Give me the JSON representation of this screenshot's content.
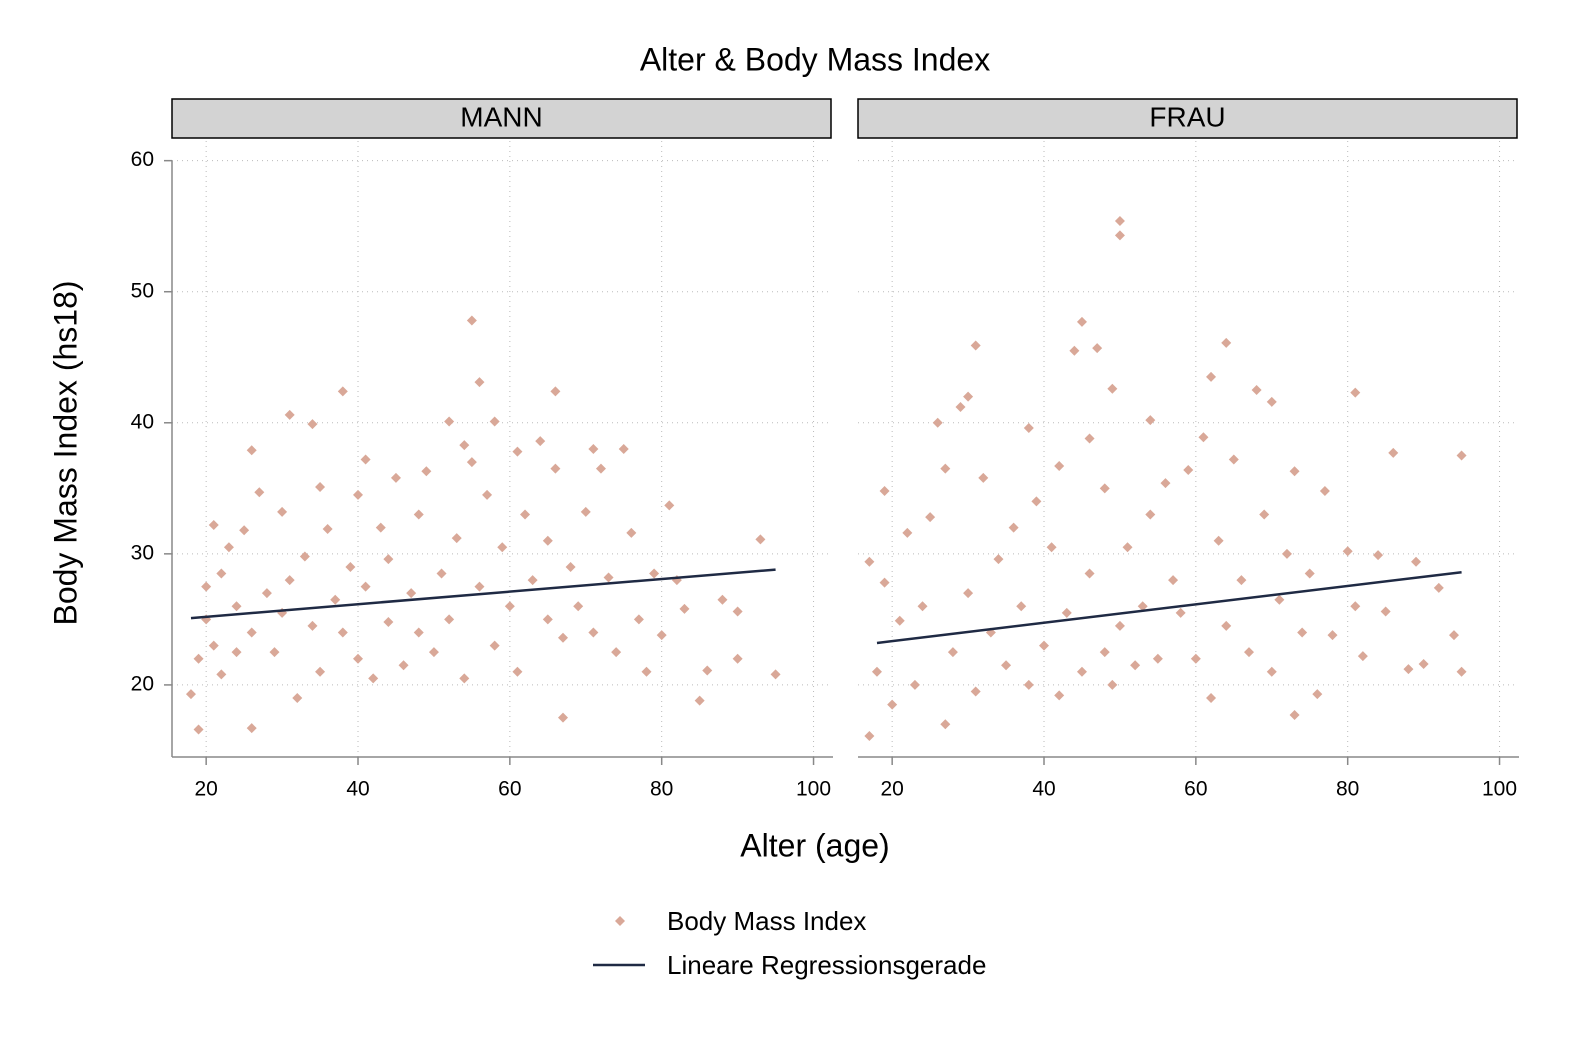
{
  "chart_data": {
    "type": "scatter",
    "title": "Alter & Body Mass Index",
    "x_label": "Alter (age)",
    "y_label": "Body Mass Index (hs18)",
    "xlim": [
      15.5,
      102.3
    ],
    "ylim": [
      14.5,
      61.5
    ],
    "xticks": [
      20,
      40,
      60,
      80,
      100
    ],
    "yticks": [
      20,
      30,
      40,
      50,
      60
    ],
    "grid": true,
    "legend": "bottom",
    "series": [
      {
        "name": "Body Mass Index",
        "color": "#d9a898",
        "marker": "diamond"
      },
      {
        "name": "Lineare Regressionsgerade",
        "color": "#1f2a44"
      }
    ],
    "panels": [
      {
        "title": "MANN",
        "points": {
          "x": [
            18,
            19,
            19,
            20,
            20,
            21,
            21,
            22,
            22,
            23,
            24,
            24,
            25,
            26,
            26,
            26,
            27,
            28,
            29,
            30,
            30,
            31,
            31,
            32,
            33,
            34,
            34,
            35,
            35,
            36,
            37,
            38,
            38,
            39,
            40,
            40,
            41,
            41,
            42,
            43,
            44,
            44,
            45,
            46,
            47,
            48,
            48,
            49,
            50,
            51,
            52,
            52,
            53,
            54,
            54,
            55,
            55,
            56,
            56,
            57,
            58,
            58,
            59,
            60,
            61,
            61,
            62,
            63,
            64,
            65,
            65,
            66,
            66,
            67,
            67,
            68,
            69,
            70,
            71,
            71,
            72,
            73,
            74,
            75,
            76,
            77,
            78,
            79,
            80,
            81,
            82,
            83,
            85,
            86,
            88,
            90,
            90,
            93,
            95
          ],
          "values": [
            19.3,
            16.6,
            22,
            27.5,
            25,
            32.2,
            23,
            28.5,
            20.8,
            30.5,
            26,
            22.5,
            31.8,
            37.9,
            16.7,
            24,
            34.7,
            27,
            22.5,
            33.2,
            25.5,
            40.6,
            28,
            19,
            29.8,
            39.9,
            24.5,
            35.1,
            21,
            31.9,
            26.5,
            42.4,
            24,
            29,
            22,
            34.5,
            37.2,
            27.5,
            20.5,
            32,
            24.8,
            29.6,
            35.8,
            21.5,
            27,
            33,
            24,
            36.3,
            22.5,
            28.5,
            40.1,
            25,
            31.2,
            38.3,
            20.5,
            47.8,
            37,
            43.1,
            27.5,
            34.5,
            40.1,
            23,
            30.5,
            26,
            37.8,
            21,
            33,
            28,
            38.6,
            25,
            31,
            36.5,
            42.4,
            17.5,
            23.6,
            29,
            26,
            33.2,
            38,
            24,
            36.5,
            28.2,
            22.5,
            38,
            31.6,
            25,
            21,
            28.5,
            23.8,
            33.7,
            28,
            25.8,
            18.8,
            21.1,
            26.5,
            25.6,
            22,
            31.1,
            20.8
          ]
        },
        "fit": {
          "x": [
            18,
            95
          ],
          "values": [
            25.1,
            28.8
          ]
        }
      },
      {
        "title": "FRAU",
        "points": {
          "x": [
            17,
            17,
            18,
            19,
            19,
            20,
            21,
            22,
            23,
            24,
            25,
            26,
            27,
            27,
            28,
            29,
            30,
            30,
            31,
            31,
            32,
            33,
            34,
            35,
            36,
            37,
            38,
            38,
            39,
            40,
            41,
            42,
            42,
            43,
            44,
            45,
            45,
            46,
            46,
            47,
            48,
            48,
            49,
            49,
            50,
            50,
            50,
            51,
            52,
            53,
            54,
            54,
            55,
            56,
            57,
            58,
            59,
            60,
            61,
            62,
            62,
            63,
            64,
            64,
            65,
            66,
            67,
            68,
            69,
            70,
            70,
            71,
            72,
            73,
            73,
            74,
            75,
            76,
            77,
            78,
            80,
            81,
            81,
            82,
            84,
            85,
            86,
            88,
            89,
            90,
            92,
            94,
            95,
            95
          ],
          "values": [
            16.1,
            29.4,
            21,
            34.8,
            27.8,
            18.5,
            24.9,
            31.6,
            20,
            26,
            32.8,
            40,
            17,
            36.5,
            22.5,
            41.2,
            42,
            27,
            45.9,
            19.5,
            35.8,
            24,
            29.6,
            21.5,
            32,
            26,
            39.6,
            20,
            34,
            23,
            30.5,
            36.7,
            19.2,
            25.5,
            45.5,
            47.7,
            21,
            38.8,
            28.5,
            45.7,
            35,
            22.5,
            42.6,
            20,
            55.4,
            54.3,
            24.5,
            30.5,
            21.5,
            26,
            40.2,
            33,
            22,
            35.4,
            28,
            25.5,
            36.4,
            22,
            38.9,
            43.5,
            19,
            31,
            46.1,
            24.5,
            37.2,
            28,
            22.5,
            42.5,
            33,
            41.6,
            21,
            26.5,
            30,
            36.3,
            17.7,
            24,
            28.5,
            19.3,
            34.8,
            23.8,
            30.2,
            42.3,
            26,
            22.2,
            29.9,
            25.6,
            37.7,
            21.2,
            29.4,
            21.6,
            27.4,
            23.8,
            37.5,
            21
          ]
        },
        "fit": {
          "x": [
            18,
            95
          ],
          "values": [
            23.2,
            28.6
          ]
        }
      }
    ]
  }
}
